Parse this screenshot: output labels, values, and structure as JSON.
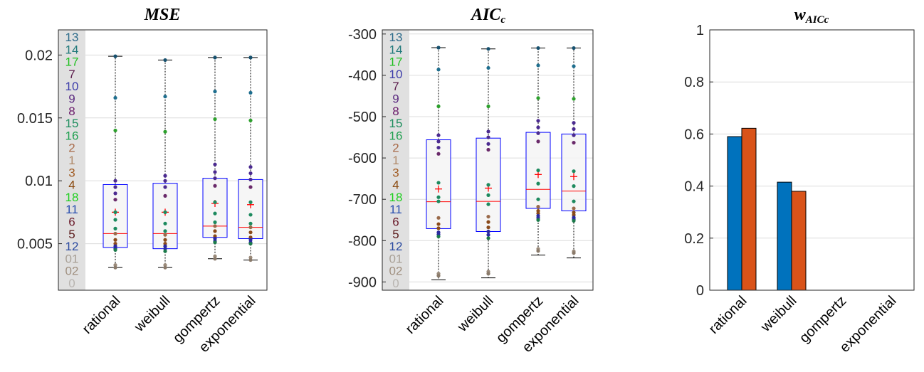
{
  "colors": {
    "box_edge": "#0000ff",
    "box_fill": "#f5f5f5",
    "median": "#ff0000",
    "mean": "#ff0000",
    "label_strip": "#e0e0e0",
    "grid": "#dcdcdc",
    "bar_series1": "#0072bd",
    "bar_series2": "#d95319"
  },
  "chart_data": [
    {
      "type": "box",
      "title_main": "MSE",
      "title_sub": "",
      "categories": [
        "rational",
        "weibull",
        "gompertz",
        "exponential"
      ],
      "ylim": [
        0.0013,
        0.022
      ],
      "yticks": [
        0.005,
        0.01,
        0.015,
        0.02
      ],
      "ytick_labels": [
        "0.005",
        "0.01",
        "0.015",
        "0.02"
      ],
      "grid": true,
      "boxes": [
        {
          "q1": 0.0047,
          "median": 0.0058,
          "q3": 0.0097,
          "mean": 0.0075,
          "whisker_low": 0.0031,
          "whisker_high": 0.0199
        },
        {
          "q1": 0.0046,
          "median": 0.0058,
          "q3": 0.0098,
          "mean": 0.0075,
          "whisker_low": 0.0031,
          "whisker_high": 0.0196
        },
        {
          "q1": 0.0055,
          "median": 0.0064,
          "q3": 0.0102,
          "mean": 0.0082,
          "whisker_low": 0.0038,
          "whisker_high": 0.0198
        },
        {
          "q1": 0.0054,
          "median": 0.0063,
          "q3": 0.0101,
          "mean": 0.0081,
          "whisker_low": 0.0037,
          "whisker_high": 0.0198
        }
      ],
      "points": [
        [
          0.0199,
          0.0166,
          0.014,
          0.01,
          0.0095,
          0.009,
          0.0085,
          0.0075,
          0.0069,
          0.0062,
          0.0058,
          0.0053,
          0.005,
          0.0048,
          0.0046,
          0.0045,
          0.0033,
          0.0031
        ],
        [
          0.0196,
          0.0167,
          0.0139,
          0.0104,
          0.01,
          0.0095,
          0.0088,
          0.0075,
          0.0066,
          0.006,
          0.0057,
          0.0053,
          0.005,
          0.0048,
          0.0046,
          0.0044,
          0.0033,
          0.0031
        ],
        [
          0.0198,
          0.0171,
          0.0149,
          0.0113,
          0.0107,
          0.0102,
          0.0096,
          0.0083,
          0.0074,
          0.0067,
          0.0064,
          0.006,
          0.0056,
          0.0054,
          0.0052,
          0.0051,
          0.004,
          0.0038
        ],
        [
          0.0198,
          0.017,
          0.0148,
          0.0111,
          0.0106,
          0.0101,
          0.0095,
          0.0083,
          0.0073,
          0.0066,
          0.0063,
          0.0059,
          0.0055,
          0.0053,
          0.0051,
          0.005,
          0.0039,
          0.0037
        ]
      ],
      "point_colors": [
        "#16506e",
        "#1e6e8e",
        "#2ca02c",
        "#4b2a90",
        "#4b2a90",
        "#4b2a90",
        "#6a2a6a",
        "#1d8a5e",
        "#1d8a5e",
        "#1d8a5e",
        "#9a6a4a",
        "#8a4a1a",
        "#8a4a1a",
        "#2a2aa0",
        "#2a2aa0",
        "#1b7a4a",
        "#9a8a7a",
        "#8a7a6a"
      ],
      "side_labels": [
        {
          "text": "13",
          "color": "#2b6a8a"
        },
        {
          "text": "14",
          "color": "#21797b"
        },
        {
          "text": "17",
          "color": "#1fbf1f"
        },
        {
          "text": "7",
          "color": "#5a1a4a"
        },
        {
          "text": "10",
          "color": "#3c3caa"
        },
        {
          "text": "9",
          "color": "#5b2a80"
        },
        {
          "text": "8",
          "color": "#6a1a6a"
        },
        {
          "text": "15",
          "color": "#1e8e5e"
        },
        {
          "text": "16",
          "color": "#20a050"
        },
        {
          "text": "2",
          "color": "#a86a48"
        },
        {
          "text": "1",
          "color": "#b08a6a"
        },
        {
          "text": "3",
          "color": "#a05a20"
        },
        {
          "text": "4",
          "color": "#8a4a10"
        },
        {
          "text": "18",
          "color": "#1ecf1e"
        },
        {
          "text": "11",
          "color": "#2a50b0"
        },
        {
          "text": "6",
          "color": "#6a1a2a"
        },
        {
          "text": "5",
          "color": "#5a1a1a"
        },
        {
          "text": "12",
          "color": "#2a4aa0"
        },
        {
          "text": "01",
          "color": "#a8a096"
        },
        {
          "text": "02",
          "color": "#a09080"
        },
        {
          "text": "0",
          "color": "#b8b4b0"
        }
      ]
    },
    {
      "type": "box",
      "title_main": "AIC",
      "title_sub": "c",
      "categories": [
        "rational",
        "weibull",
        "gompertz",
        "exponential"
      ],
      "ylim": [
        -920,
        -290
      ],
      "yticks": [
        -900,
        -800,
        -700,
        -600,
        -500,
        -400,
        -300
      ],
      "ytick_labels": [
        "-900",
        "-800",
        "-700",
        "-600",
        "-500",
        "-400",
        "-300"
      ],
      "grid": true,
      "boxes": [
        {
          "q1": -771,
          "median": -706,
          "q3": -556,
          "mean": -675,
          "whisker_low": -895,
          "whisker_high": -333
        },
        {
          "q1": -778,
          "median": -705,
          "q3": -552,
          "mean": -673,
          "whisker_low": -890,
          "whisker_high": -336
        },
        {
          "q1": -722,
          "median": -676,
          "q3": -538,
          "mean": -640,
          "whisker_low": -835,
          "whisker_high": -334
        },
        {
          "q1": -728,
          "median": -680,
          "q3": -542,
          "mean": -645,
          "whisker_low": -842,
          "whisker_high": -334
        }
      ],
      "points": [
        [
          -333,
          -386,
          -475,
          -545,
          -560,
          -575,
          -590,
          -660,
          -695,
          -705,
          -745,
          -760,
          -770,
          -780,
          -785,
          -790,
          -880,
          -885
        ],
        [
          -336,
          -382,
          -475,
          -536,
          -550,
          -566,
          -580,
          -665,
          -690,
          -712,
          -742,
          -755,
          -768,
          -778,
          -786,
          -794,
          -875,
          -880
        ],
        [
          -334,
          -376,
          -455,
          -510,
          -526,
          -540,
          -560,
          -630,
          -662,
          -700,
          -718,
          -728,
          -734,
          -740,
          -745,
          -750,
          -820,
          -825
        ],
        [
          -334,
          -378,
          -457,
          -515,
          -530,
          -545,
          -563,
          -632,
          -668,
          -705,
          -722,
          -732,
          -738,
          -744,
          -748,
          -752,
          -826,
          -830
        ]
      ],
      "point_colors": [
        "#16506e",
        "#1e6e8e",
        "#2ca02c",
        "#4b2a90",
        "#4b2a90",
        "#4b2a90",
        "#6a2a6a",
        "#1d8a5e",
        "#1d8a5e",
        "#1d8a5e",
        "#9a6a4a",
        "#8a4a1a",
        "#8a4a1a",
        "#2a2aa0",
        "#2a2aa0",
        "#1b7a4a",
        "#9a8a7a",
        "#8a7a6a"
      ],
      "side_labels": [
        {
          "text": "13",
          "color": "#2b6a8a"
        },
        {
          "text": "14",
          "color": "#21797b"
        },
        {
          "text": "17",
          "color": "#1fbf1f"
        },
        {
          "text": "10",
          "color": "#3c3caa"
        },
        {
          "text": "7",
          "color": "#5a1a4a"
        },
        {
          "text": "9",
          "color": "#5b2a80"
        },
        {
          "text": "8",
          "color": "#6a1a6a"
        },
        {
          "text": "15",
          "color": "#1e8e5e"
        },
        {
          "text": "16",
          "color": "#20a050"
        },
        {
          "text": "2",
          "color": "#a86a48"
        },
        {
          "text": "1",
          "color": "#b08a6a"
        },
        {
          "text": "3",
          "color": "#a05a20"
        },
        {
          "text": "4",
          "color": "#8a4a10"
        },
        {
          "text": "18",
          "color": "#1ecf1e"
        },
        {
          "text": "11",
          "color": "#2a50b0"
        },
        {
          "text": "6",
          "color": "#6a1a2a"
        },
        {
          "text": "5",
          "color": "#5a1a1a"
        },
        {
          "text": "12",
          "color": "#2a4aa0"
        },
        {
          "text": "01",
          "color": "#a8a096"
        },
        {
          "text": "02",
          "color": "#a09080"
        },
        {
          "text": "0",
          "color": "#b8b4b0"
        }
      ]
    },
    {
      "type": "bar",
      "title_main": "w",
      "title_sub": "AICc",
      "categories": [
        "rational",
        "weibull",
        "gompertz",
        "exponential"
      ],
      "ylim": [
        0,
        1
      ],
      "yticks": [
        0,
        0.2,
        0.4,
        0.6,
        0.8,
        1
      ],
      "ytick_labels": [
        "0",
        "0.2",
        "0.4",
        "0.6",
        "0.8",
        "1"
      ],
      "grid": true,
      "series": [
        {
          "values": [
            0.59,
            0.415,
            0,
            0
          ],
          "color": "#0072bd"
        },
        {
          "values": [
            0.622,
            0.38,
            0,
            0
          ],
          "color": "#d95319"
        }
      ]
    }
  ]
}
